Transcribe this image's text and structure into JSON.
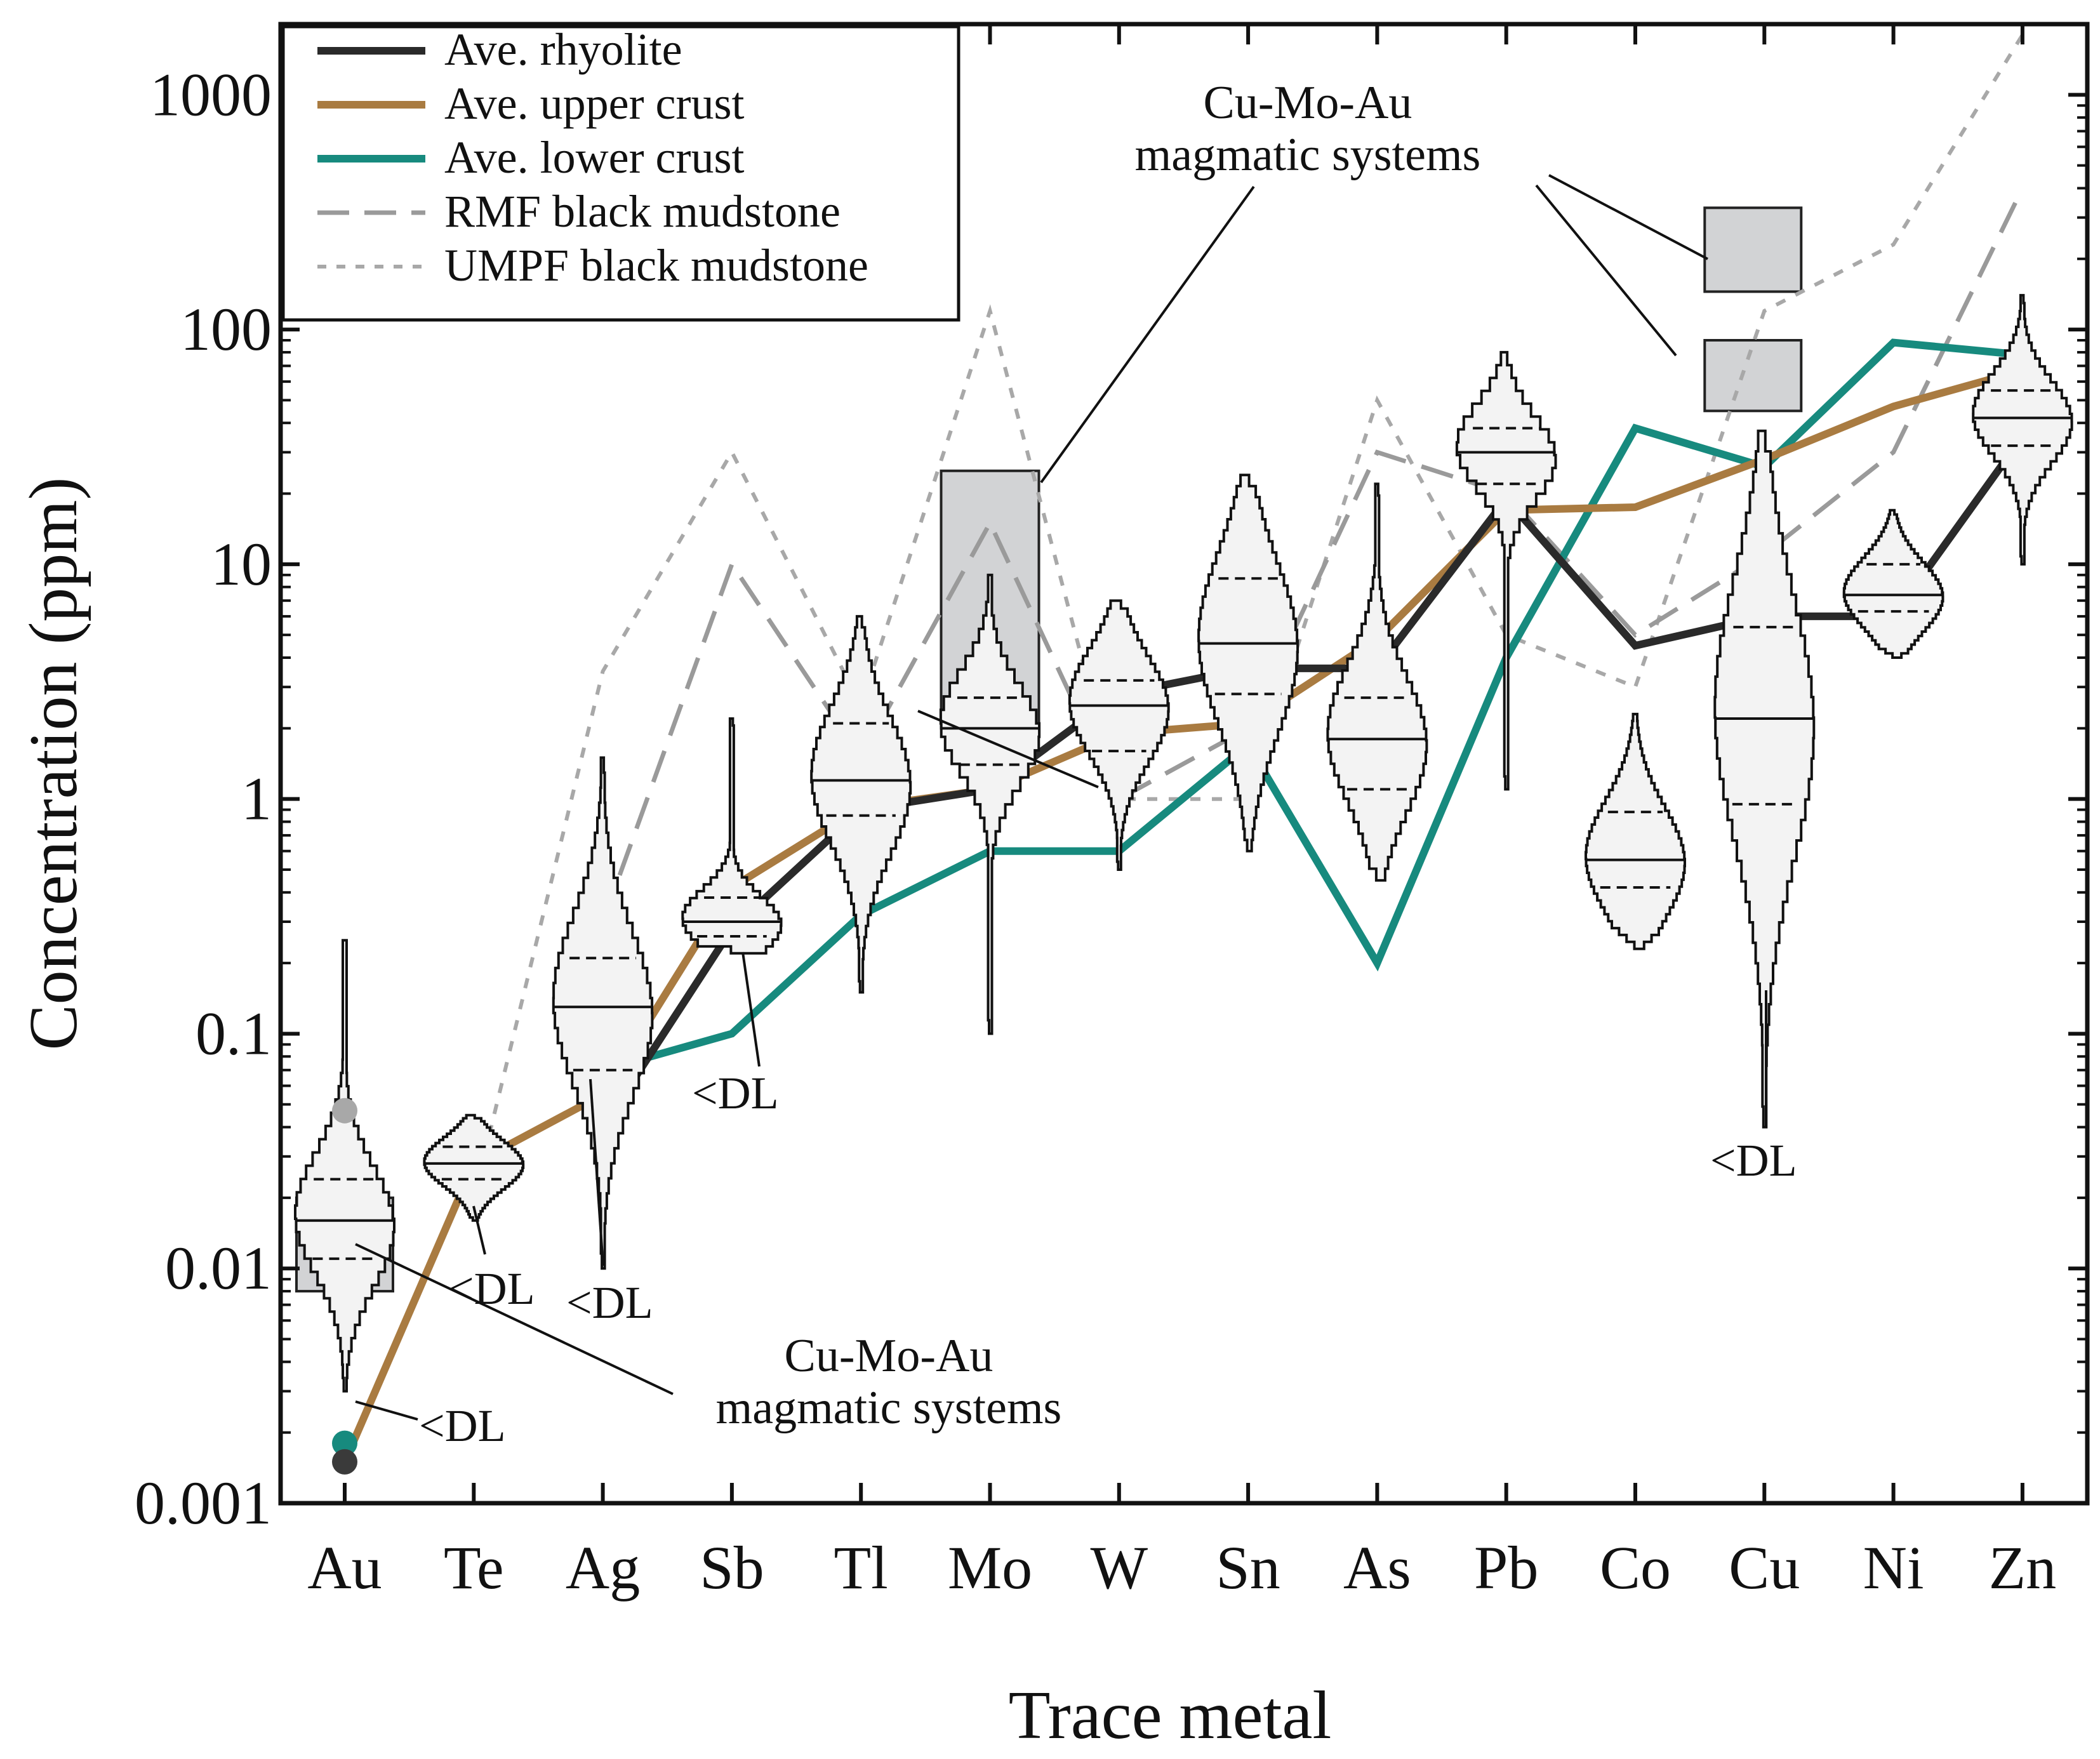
{
  "chart_data": {
    "type": "line",
    "xlabel": "Trace metal",
    "ylabel": "Concentration (ppm)",
    "yscale": "log",
    "ylim": [
      0.001,
      2000
    ],
    "yticks": [
      {
        "v": 0.001,
        "label": "0.001"
      },
      {
        "v": 0.01,
        "label": "0.01"
      },
      {
        "v": 0.1,
        "label": "0.1"
      },
      {
        "v": 1,
        "label": "1"
      },
      {
        "v": 10,
        "label": "10"
      },
      {
        "v": 100,
        "label": "100"
      },
      {
        "v": 1000,
        "label": "1000"
      }
    ],
    "categories": [
      "Au",
      "Te",
      "Ag",
      "Sb",
      "Tl",
      "Mo",
      "W",
      "Sn",
      "As",
      "Pb",
      "Co",
      "Cu",
      "Ni",
      "Zn"
    ],
    "legend_position": "top-left",
    "series": [
      {
        "name": "Ave. rhyolite",
        "color": "#2a2a2a",
        "style": "solid",
        "values": [
          0.0015,
          null,
          0.04,
          0.28,
          0.9,
          1.1,
          2.8,
          3.6,
          3.6,
          19,
          4.5,
          6.0,
          6.0,
          35
        ]
      },
      {
        "name": "Ave. upper crust",
        "color": "#a97b41",
        "style": "solid",
        "values": [
          0.0015,
          0.028,
          0.055,
          0.42,
          0.92,
          1.1,
          1.9,
          2.1,
          4.8,
          17,
          17.5,
          28,
          47,
          67
        ]
      },
      {
        "name": "Ave. lower crust",
        "color": "#178a7e",
        "style": "solid",
        "values": [
          0.0018,
          null,
          0.07,
          0.1,
          0.32,
          0.6,
          0.6,
          1.7,
          0.2,
          4,
          38,
          26,
          88,
          78
        ]
      },
      {
        "name": "RMF black mudstone",
        "color": "#9a9a9a",
        "style": "dashed",
        "values": [
          null,
          null,
          0.3,
          10,
          1.5,
          15,
          1,
          2,
          30,
          20,
          5,
          11,
          30,
          400
        ]
      },
      {
        "name": "UMPF black mudstone",
        "color": "#a8a8a8",
        "style": "dotted",
        "values": [
          null,
          0.02,
          3.5,
          30,
          2.5,
          120,
          1,
          1,
          50,
          5,
          3,
          120,
          230,
          1800
        ]
      }
    ],
    "distributions": [
      {
        "category": "Au",
        "min": 0.003,
        "max": 0.25,
        "median": 0.016,
        "q1": 0.011,
        "q3": 0.024
      },
      {
        "category": "Te",
        "min": 0.016,
        "max": 0.045,
        "median": 0.028,
        "q1": 0.024,
        "q3": 0.033
      },
      {
        "category": "Ag",
        "min": 0.01,
        "max": 1.5,
        "median": 0.13,
        "q1": 0.07,
        "q3": 0.21
      },
      {
        "category": "Sb",
        "min": 0.22,
        "max": 2.2,
        "median": 0.3,
        "q1": 0.26,
        "q3": 0.38
      },
      {
        "category": "Tl",
        "min": 0.15,
        "max": 6,
        "median": 1.2,
        "q1": 0.85,
        "q3": 2.1
      },
      {
        "category": "Mo",
        "min": 0.1,
        "max": 9,
        "median": 2.0,
        "q1": 1.4,
        "q3": 2.7
      },
      {
        "category": "W",
        "min": 0.5,
        "max": 7,
        "median": 2.5,
        "q1": 1.6,
        "q3": 3.2
      },
      {
        "category": "Sn",
        "min": 0.6,
        "max": 24,
        "median": 4.6,
        "q1": 2.8,
        "q3": 8.7
      },
      {
        "category": "As",
        "min": 0.45,
        "max": 22,
        "median": 1.8,
        "q1": 1.1,
        "q3": 2.7
      },
      {
        "category": "Pb",
        "min": 1.1,
        "max": 80,
        "median": 30,
        "q1": 22,
        "q3": 38
      },
      {
        "category": "Co",
        "min": 0.23,
        "max": 2.3,
        "median": 0.55,
        "q1": 0.42,
        "q3": 0.88
      },
      {
        "category": "Cu",
        "min": 0.04,
        "max": 37,
        "median": 2.2,
        "q1": 0.95,
        "q3": 5.4
      },
      {
        "category": "Ni",
        "min": 4,
        "max": 17,
        "median": 7.4,
        "q1": 6.3,
        "q3": 10
      },
      {
        "category": "Zn",
        "min": 10,
        "max": 140,
        "median": 42,
        "q1": 32,
        "q3": 55
      }
    ],
    "ranges": [
      {
        "category": "Au",
        "low": 0.008,
        "high": 0.02,
        "label": "Cu-Mo-Au magmatic systems"
      },
      {
        "category": "Mo",
        "low": 2,
        "high": 25,
        "label": "Cu-Mo-Au magmatic systems"
      },
      {
        "category": "Cu",
        "low": 45,
        "high": 90,
        "label": "Cu-Mo-Au magmatic systems"
      },
      {
        "category": "Cu",
        "low": 145,
        "high": 330,
        "label": "Cu-Mo-Au magmatic systems"
      }
    ],
    "points": [
      {
        "category": "Au",
        "value": 0.047,
        "color": "#a8a8a8"
      },
      {
        "category": "Au",
        "value": 0.0018,
        "color": "#178a7e"
      },
      {
        "category": "Au",
        "value": 0.0015,
        "color": "#3a3a3a"
      }
    ],
    "annotations": [
      {
        "text": "Cu-Mo-Au",
        "text2": "magmatic systems"
      },
      {
        "text": "Cu-Mo-Au",
        "text2": "magmatic systems"
      }
    ],
    "dl_labels": [
      "<DL",
      "<DL",
      "<DL",
      "<DL",
      "<DL"
    ]
  }
}
